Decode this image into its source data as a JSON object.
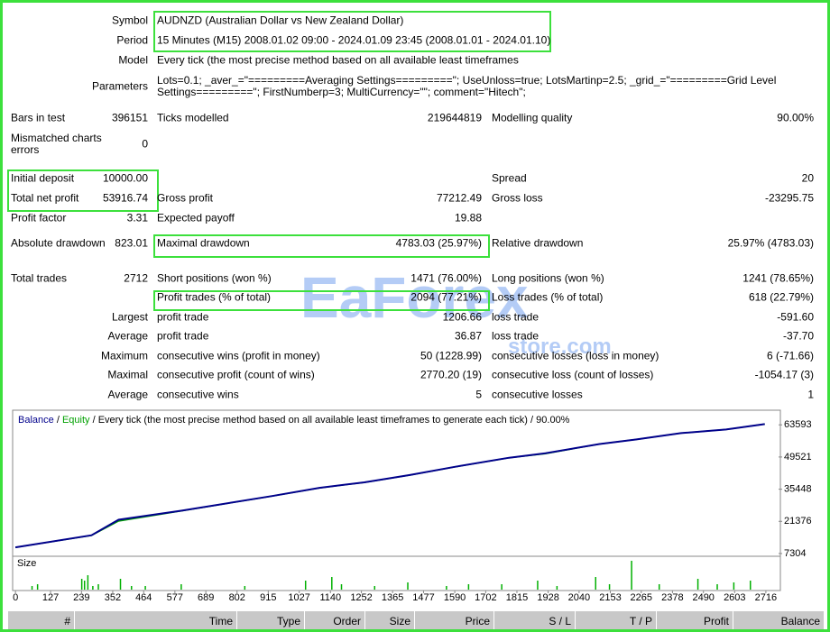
{
  "report": {
    "rows": [
      {
        "a_label": "Symbol",
        "text": "AUDNZD (Australian Dollar vs New Zealand Dollar)"
      },
      {
        "a_label": "Period",
        "text": "15 Minutes (M15) 2008.01.02 09:00 - 2024.01.09 23:45 (2008.01.01 - 2024.01.10)"
      },
      {
        "a_label": "Model",
        "text": "Every tick (the most precise method based on all available least timeframes"
      },
      {
        "a_label": "Parameters",
        "text": "Lots=0.1; _aver_=\"=========Averaging Settings=========\"; UseUnloss=true; LotsMartinp=2.5; _grid_=\"=========Grid Level Settings=========\"; FirstNumberp=3; MultiCurrency=\"\"; comment=\"Hitech\";"
      },
      {
        "a_label": "Bars in test",
        "a_value": "396151",
        "b_label": "Ticks modelled",
        "b_value": "219644819",
        "c_label": "Modelling quality",
        "c_value": "90.00%"
      },
      {
        "a_label": "Mismatched charts errors",
        "a_value": "0"
      },
      {
        "a_label": "Initial deposit",
        "a_value": "10000.00",
        "c_label": "Spread",
        "c_value": "20"
      },
      {
        "a_label": "Total net profit",
        "a_value": "53916.74",
        "b_label": "Gross profit",
        "b_value": "77212.49",
        "c_label": "Gross loss",
        "c_value": "-23295.75"
      },
      {
        "a_label": "Profit factor",
        "a_value": "3.31",
        "b_label": "Expected payoff",
        "b_value": "19.88"
      },
      {
        "a_label": "Absolute drawdown",
        "a_value": "823.01",
        "b_label": "Maximal drawdown",
        "b_value": "4783.03 (25.97%)",
        "c_label": "Relative drawdown",
        "c_value": "25.97% (4783.03)"
      },
      {
        "a_label": "Total trades",
        "a_value": "2712",
        "b_label": "Short positions (won %)",
        "b_value": "1471 (76.00%)",
        "c_label": "Long positions (won %)",
        "c_value": "1241 (78.65%)"
      },
      {
        "b_label": "Profit trades (% of total)",
        "b_value": "2094 (77.21%)",
        "c_label": "Loss trades (% of total)",
        "c_value": "618 (22.79%)"
      },
      {
        "a_label": "Largest",
        "b_label": "profit trade",
        "b_value": "1206.66",
        "c_label": "loss trade",
        "c_value": "-591.60"
      },
      {
        "a_label": "Average",
        "b_label": "profit trade",
        "b_value": "36.87",
        "c_label": "loss trade",
        "c_value": "-37.70"
      },
      {
        "a_label": "Maximum",
        "b_label": "consecutive wins (profit in money)",
        "b_value": "50 (1228.99)",
        "c_label": "consecutive losses (loss in money)",
        "c_value": "6 (-71.66)"
      },
      {
        "a_label": "Maximal",
        "b_label": "consecutive profit (count of wins)",
        "b_value": "2770.20 (19)",
        "c_label": "consecutive loss (count of losses)",
        "c_value": "-1054.17 (3)"
      },
      {
        "a_label": "Average",
        "b_label": "consecutive wins",
        "b_value": "5",
        "c_label": "consecutive losses",
        "c_value": "1"
      }
    ]
  },
  "watermark": [
    "EaForex",
    "store.com"
  ],
  "chart_data": [
    {
      "type": "line",
      "subtitle": "Every tick (the most precise method based on all available least timeframes to generate each tick)",
      "quality": "90.00%",
      "x": [
        0,
        275,
        373,
        602,
        929,
        1100,
        1263,
        1427,
        1590,
        1787,
        1918,
        2114,
        2245,
        2409,
        2572,
        2712
      ],
      "series": [
        {
          "name": "Balance",
          "color": "#00008b",
          "values": [
            10000,
            15284,
            22067,
            26057,
            32441,
            36032,
            38426,
            41617,
            45210,
            49200,
            51194,
            55184,
            57179,
            59972,
            61568,
            63926
          ]
        },
        {
          "name": "Equity",
          "color": "#00a000",
          "values": [
            10000,
            15200,
            21500,
            26000,
            32400,
            36000,
            38400,
            41600,
            45200,
            49200,
            51000,
            55184,
            57179,
            59972,
            61568,
            63926
          ]
        }
      ],
      "xlim": [
        -7,
        2762
      ],
      "ylim": [
        6500,
        69200
      ],
      "yticks": [
        7304,
        21376,
        35448,
        49521,
        63593
      ]
    },
    {
      "type": "bar",
      "title": "Size",
      "color": "#00b000",
      "x": [
        60,
        80,
        240,
        250,
        262,
        280,
        300,
        380,
        420,
        470,
        600,
        830,
        1050,
        1145,
        1180,
        1300,
        1420,
        1560,
        1640,
        1760,
        1890,
        1960,
        2100,
        2150,
        2230,
        2330,
        2470,
        2540,
        2600,
        2660
      ],
      "values": [
        0.2,
        0.3,
        0.6,
        0.5,
        0.8,
        0.2,
        0.3,
        0.6,
        0.2,
        0.2,
        0.3,
        0.2,
        0.5,
        0.7,
        0.3,
        0.2,
        0.4,
        0.2,
        0.3,
        0.3,
        0.5,
        0.2,
        0.7,
        0.3,
        1.6,
        0.3,
        0.6,
        0.3,
        0.4,
        0.5
      ],
      "xlim": [
        -7,
        2762
      ],
      "ylim": [
        0,
        1.7
      ],
      "xticks": [
        0,
        127,
        239,
        352,
        464,
        577,
        689,
        802,
        915,
        1027,
        1140,
        1252,
        1365,
        1477,
        1590,
        1702,
        1815,
        1928,
        2040,
        2153,
        2265,
        2378,
        2490,
        2603,
        2716
      ]
    }
  ],
  "trade_table": {
    "columns": [
      "#",
      "Time",
      "Type",
      "Order",
      "Size",
      "Price",
      "S / L",
      "T / P",
      "Profit",
      "Balance"
    ]
  }
}
